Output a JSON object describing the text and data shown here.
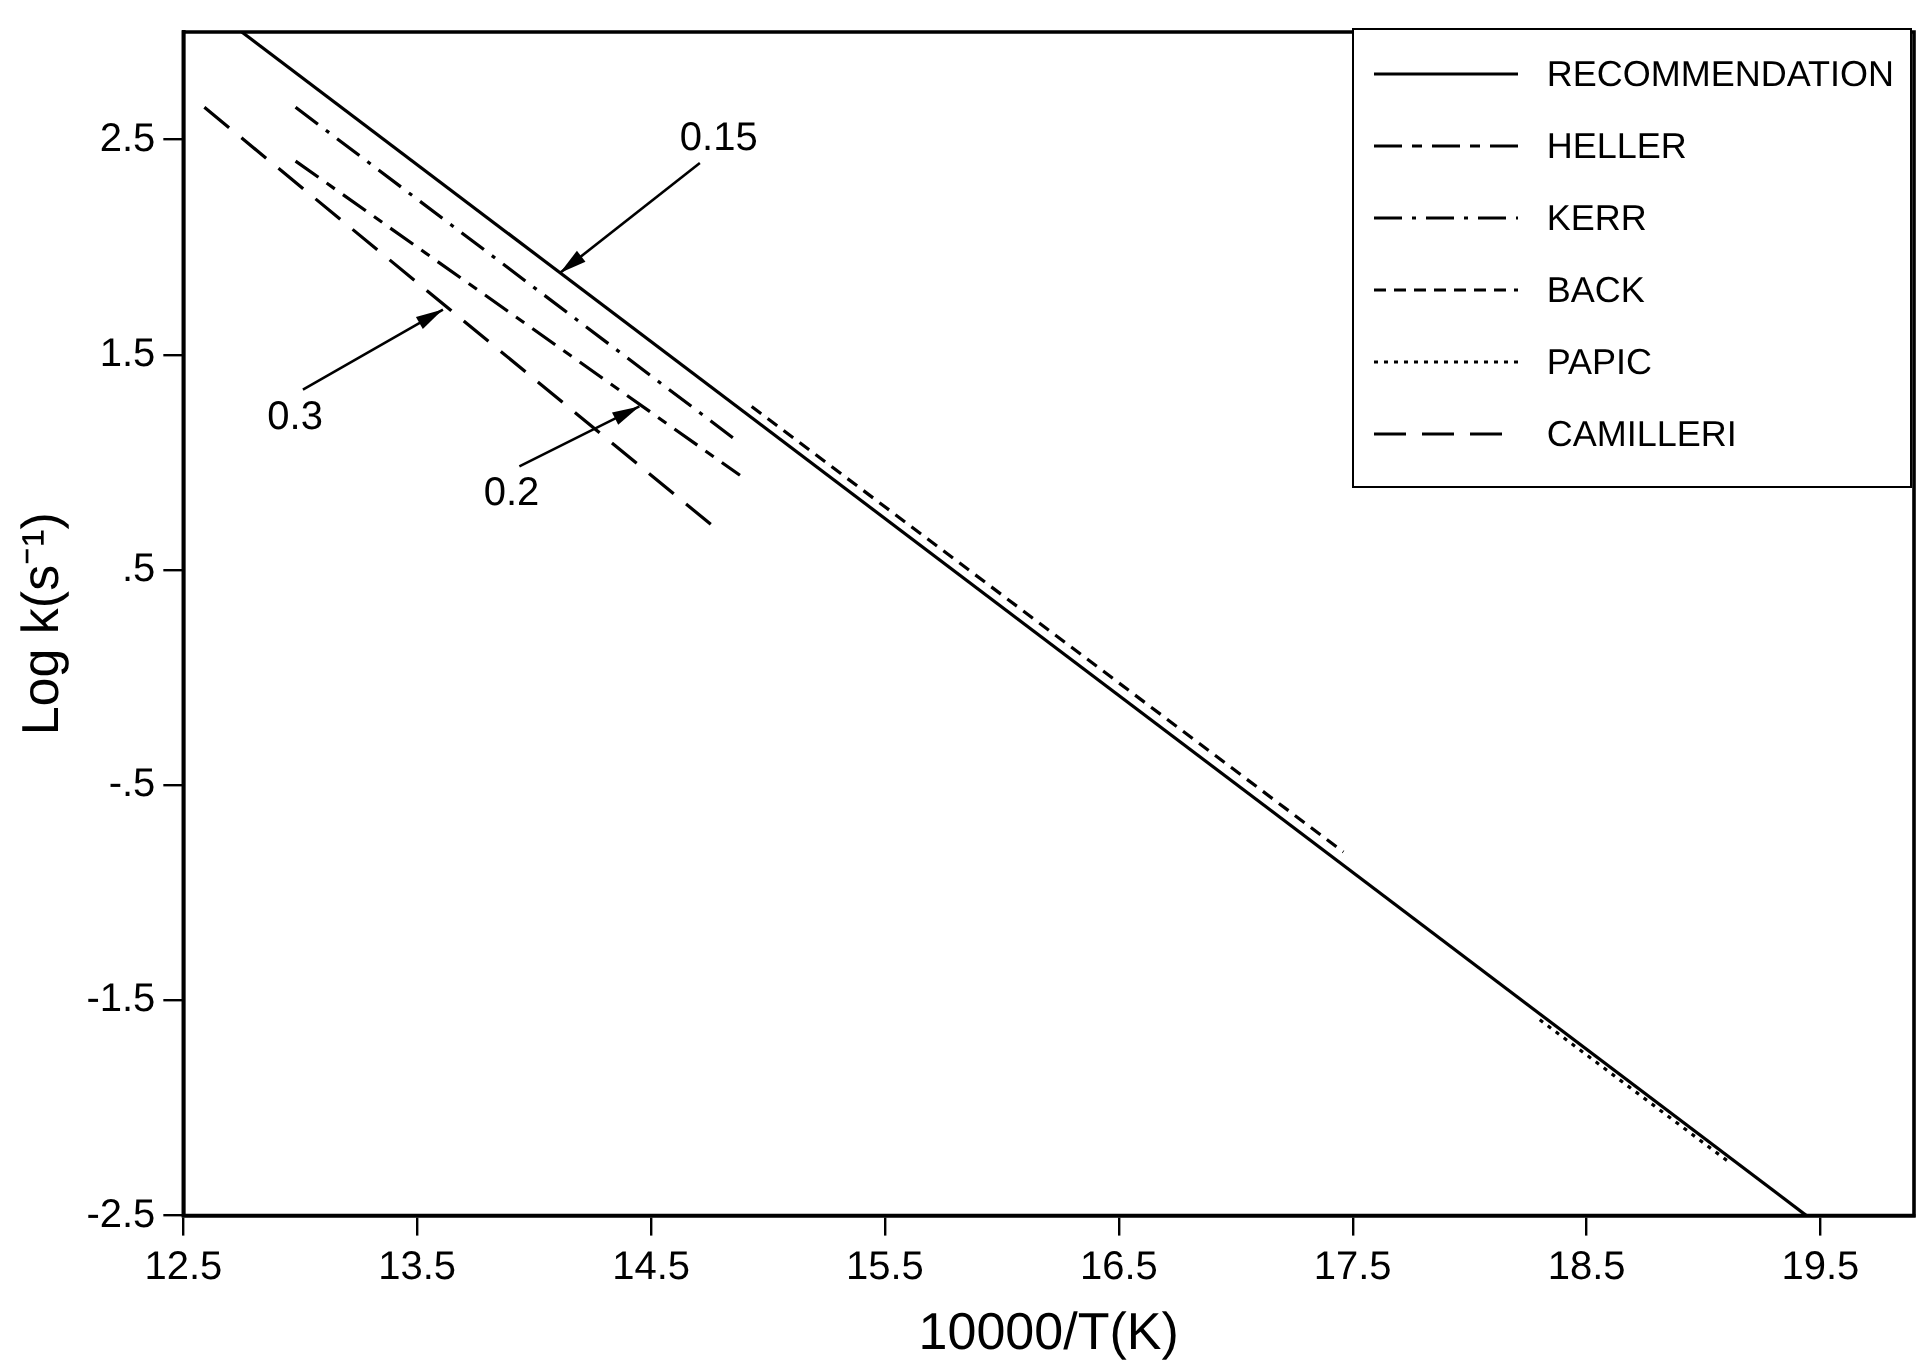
{
  "chart_data": {
    "type": "line",
    "xlabel": "10000/T(K)",
    "ylabel": "Log k(s⁻¹)",
    "xlim": [
      12.5,
      19.9
    ],
    "xticks": [
      12.5,
      13.5,
      14.5,
      15.5,
      16.5,
      17.5,
      18.5,
      19.5
    ],
    "ylim": [
      -2.5,
      3.0
    ],
    "yticks": [
      {
        "value": 2.5,
        "label": "2.5"
      },
      {
        "value": 1.5,
        "label": "1.5"
      },
      {
        "value": 0.5,
        "label": ".5"
      },
      {
        "value": -0.5,
        "label": "-.5"
      },
      {
        "value": -1.5,
        "label": "-1.5"
      },
      {
        "value": -2.5,
        "label": "-2.5"
      }
    ],
    "grid": false,
    "legend": "top right",
    "marker": "none",
    "series": [
      {
        "name": "RECOMMENDATION",
        "color": "#000000",
        "line_style": "solid",
        "x": [
          12.75,
          19.44
        ],
        "values": [
          3.0,
          -2.5
        ]
      },
      {
        "name": "HELLER",
        "color": "#000000",
        "line_style": "dashed",
        "x": [
          12.98,
          14.88
        ],
        "values": [
          2.4,
          0.94
        ]
      },
      {
        "name": "KERR",
        "color": "#000000",
        "line_style": "dashed",
        "x": [
          12.98,
          14.88
        ],
        "values": [
          2.65,
          1.09
        ]
      },
      {
        "name": "BACK",
        "color": "#000000",
        "line_style": "dashed",
        "x": [
          14.93,
          17.46
        ],
        "values": [
          1.26,
          -0.81
        ]
      },
      {
        "name": "PAPIC",
        "color": "#000000",
        "line_style": "dotted",
        "x": [
          18.3,
          19.12
        ],
        "values": [
          -1.59,
          -2.26
        ]
      },
      {
        "name": "CAMILLERI",
        "color": "#000000",
        "line_style": "dashed",
        "x": [
          12.59,
          14.78
        ],
        "values": [
          2.65,
          0.69
        ]
      }
    ],
    "annotations": [
      {
        "text": "0.15",
        "x": 14.11,
        "y": 1.88
      },
      {
        "text": "0.2",
        "x": 14.45,
        "y": 1.26
      },
      {
        "text": "0.3",
        "x": 13.61,
        "y": 1.71
      }
    ]
  }
}
